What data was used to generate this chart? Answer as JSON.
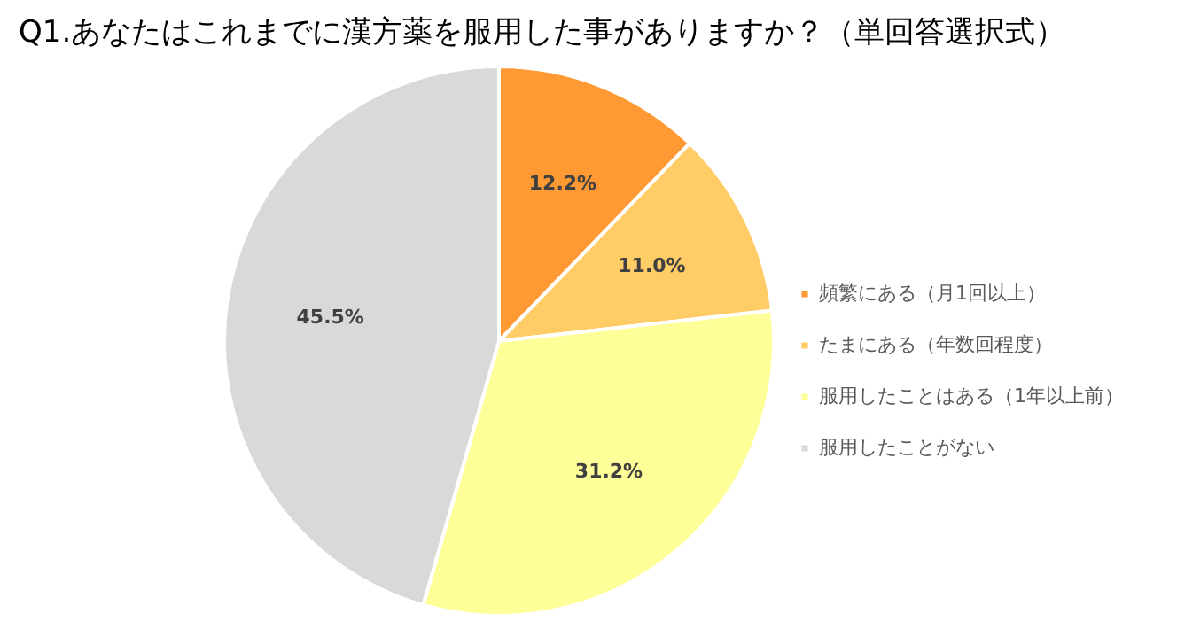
{
  "chart_data": {
    "type": "pie",
    "title": "Q1.あなたはこれまでに漢方薬を服用した事がありますか？（単回答選択式）",
    "categories": [
      "頻繁にある（月1回以上）",
      "たまにある（年数回程度）",
      "服用したことはある（1年以上前）",
      "服用したことがない"
    ],
    "values": [
      12.2,
      11.0,
      31.2,
      45.5
    ],
    "value_labels": [
      "12.2%",
      "11.0%",
      "31.2%",
      "45.5%"
    ],
    "colors": [
      "#ff9933",
      "#ffcc66",
      "#ffff99",
      "#d9d9d9"
    ],
    "legend": "right"
  }
}
